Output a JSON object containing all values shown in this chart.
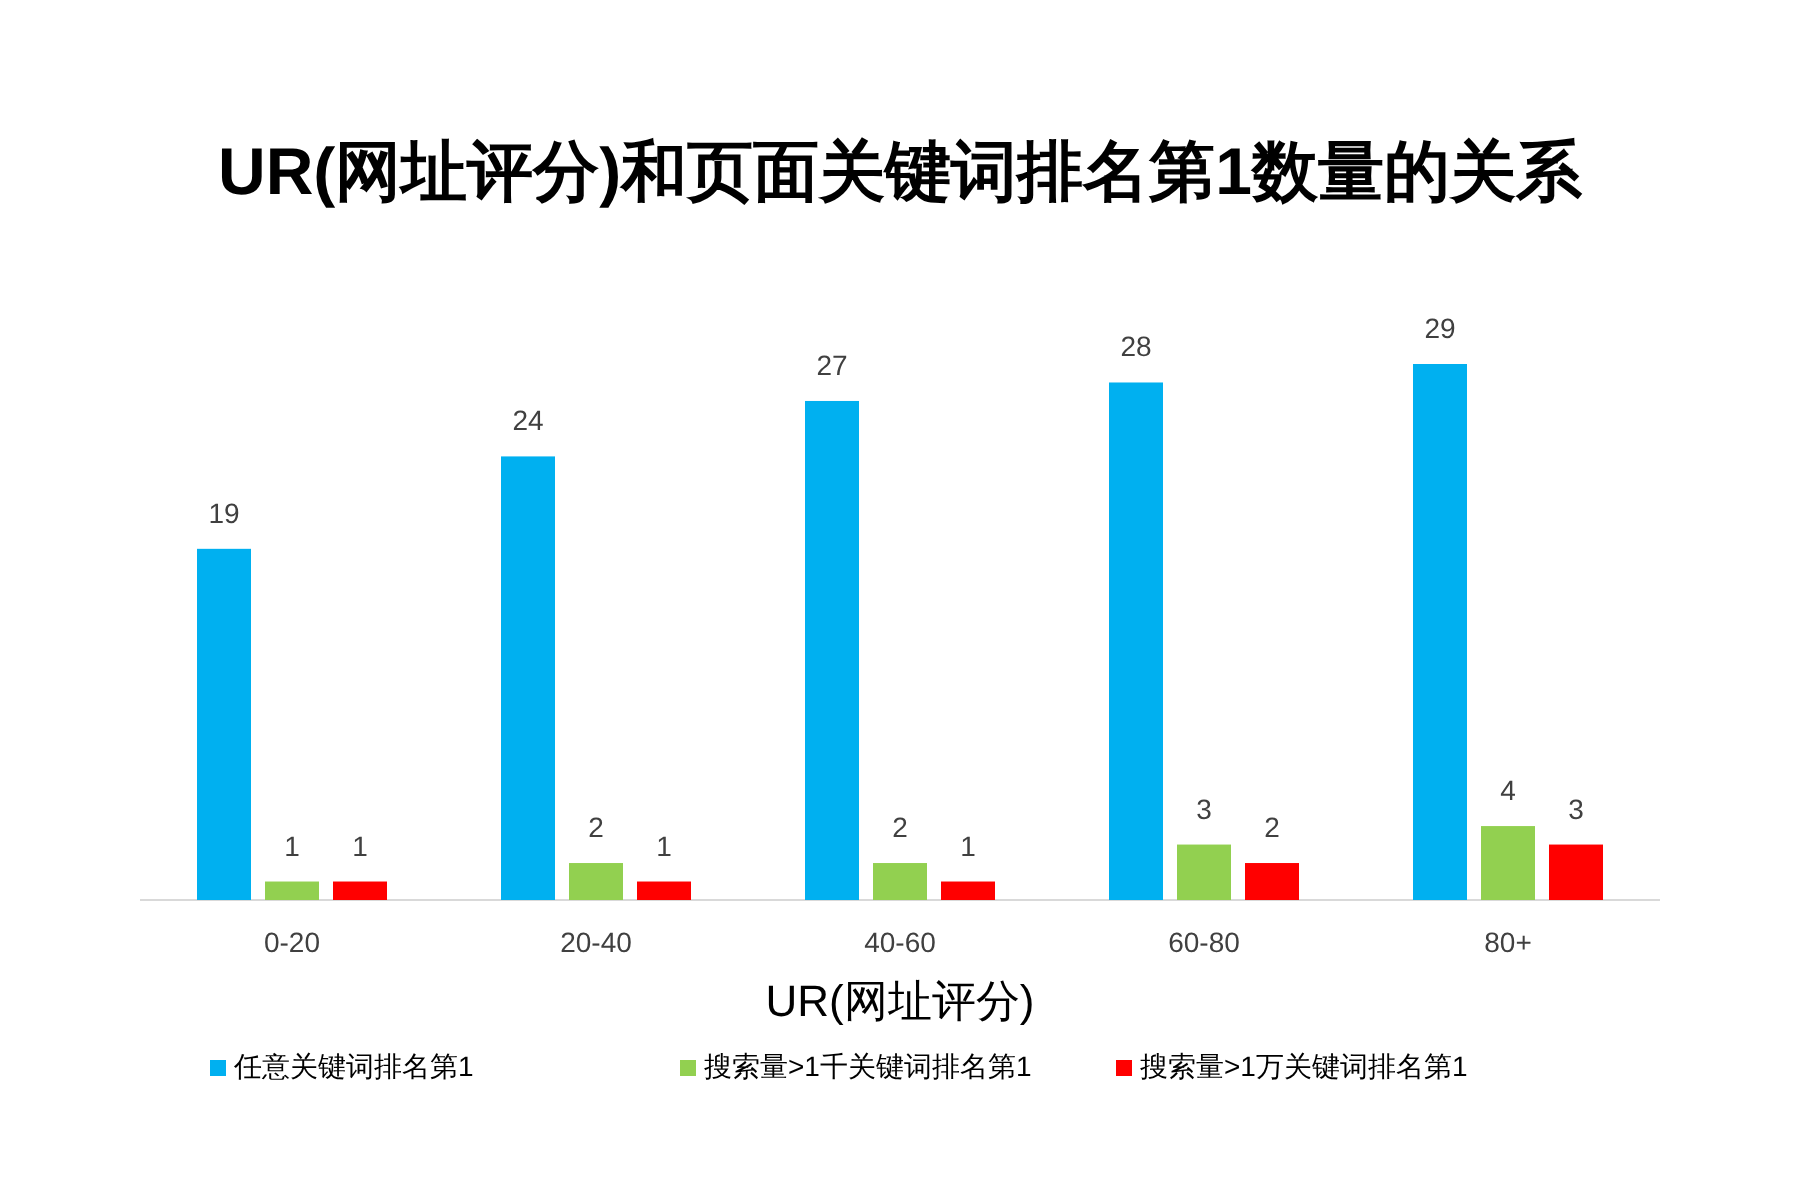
{
  "chart_data": {
    "type": "bar",
    "title": "UR(网址评分)和页面关键词排名第1数量的关系",
    "xlabel": "UR(网址评分)",
    "categories": [
      "0-20",
      "20-40",
      "40-60",
      "60-80",
      "80+"
    ],
    "series": [
      {
        "name": "任意关键词排名第1",
        "color": "#00b0f0",
        "values": [
          19,
          24,
          27,
          28,
          29
        ]
      },
      {
        "name": "搜索量>1千关键词排名第1",
        "color": "#92d050",
        "values": [
          1,
          2,
          2,
          3,
          4
        ]
      },
      {
        "name": "搜索量>1万关键词排名第1",
        "color": "#ff0000",
        "values": [
          1,
          1,
          1,
          2,
          3
        ]
      }
    ],
    "data_labels": true,
    "legend": "bottom"
  }
}
